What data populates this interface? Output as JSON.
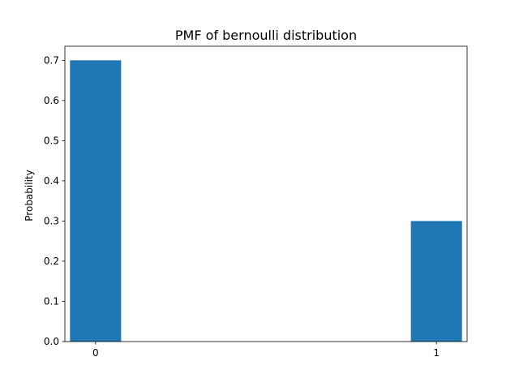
{
  "chart_data": {
    "type": "bar",
    "title": "PMF of bernoulli distribution",
    "xlabel": "",
    "ylabel": "Probability",
    "categories": [
      "0",
      "1"
    ],
    "x": [
      0,
      1
    ],
    "values": [
      0.7,
      0.3
    ],
    "bar_width": 0.15,
    "xlim": [
      -0.09,
      1.09
    ],
    "ylim": [
      0,
      0.735
    ],
    "xticks": [
      "0",
      "1"
    ],
    "yticks": [
      "0.0",
      "0.1",
      "0.2",
      "0.3",
      "0.4",
      "0.5",
      "0.6",
      "0.7"
    ],
    "grid": false,
    "legend": "none",
    "colors": {
      "bar": "#1f77b4",
      "axis": "#000000",
      "background": "#ffffff"
    }
  }
}
